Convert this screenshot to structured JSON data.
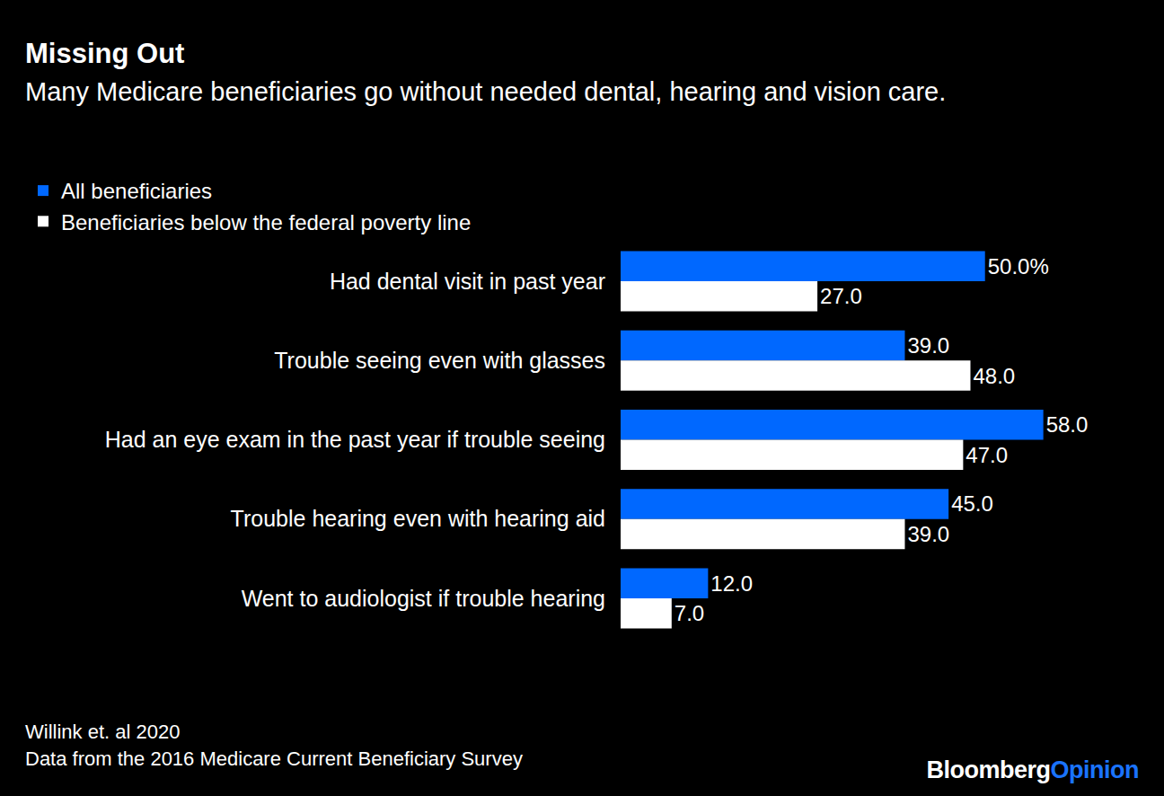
{
  "chart_data": {
    "type": "bar",
    "orientation": "horizontal",
    "title": "Missing Out",
    "subtitle": "Many Medicare beneficiaries go without needed dental, hearing and vision care.",
    "categories": [
      "Had dental visit in past year",
      "Trouble seeing even with glasses",
      "Had an eye exam in the past year if trouble seeing",
      "Trouble hearing even with hearing aid",
      "Went to audiologist if trouble hearing"
    ],
    "series": [
      {
        "name": "All beneficiaries",
        "color": "#0068ff",
        "values": [
          50,
          39,
          58,
          45,
          12
        ],
        "value_labels": [
          "50.0%",
          "39.0",
          "58.0",
          "45.0",
          "12.0"
        ]
      },
      {
        "name": "Beneficiaries below the federal poverty line",
        "color": "#ffffff",
        "values": [
          27,
          48,
          47,
          39,
          7
        ],
        "value_labels": [
          "27.0",
          "48.0",
          "47.0",
          "39.0",
          "7.0"
        ]
      }
    ],
    "xlim": [
      0,
      70
    ],
    "xticks": [],
    "grid": false,
    "legend": "top-left",
    "data_labels": true,
    "tick_labels": "y",
    "source": [
      "Willink et. al 2020",
      "Data from the 2016 Medicare Current Beneficiary Survey"
    ],
    "branding": [
      "Bloomberg",
      "Opinion"
    ]
  }
}
